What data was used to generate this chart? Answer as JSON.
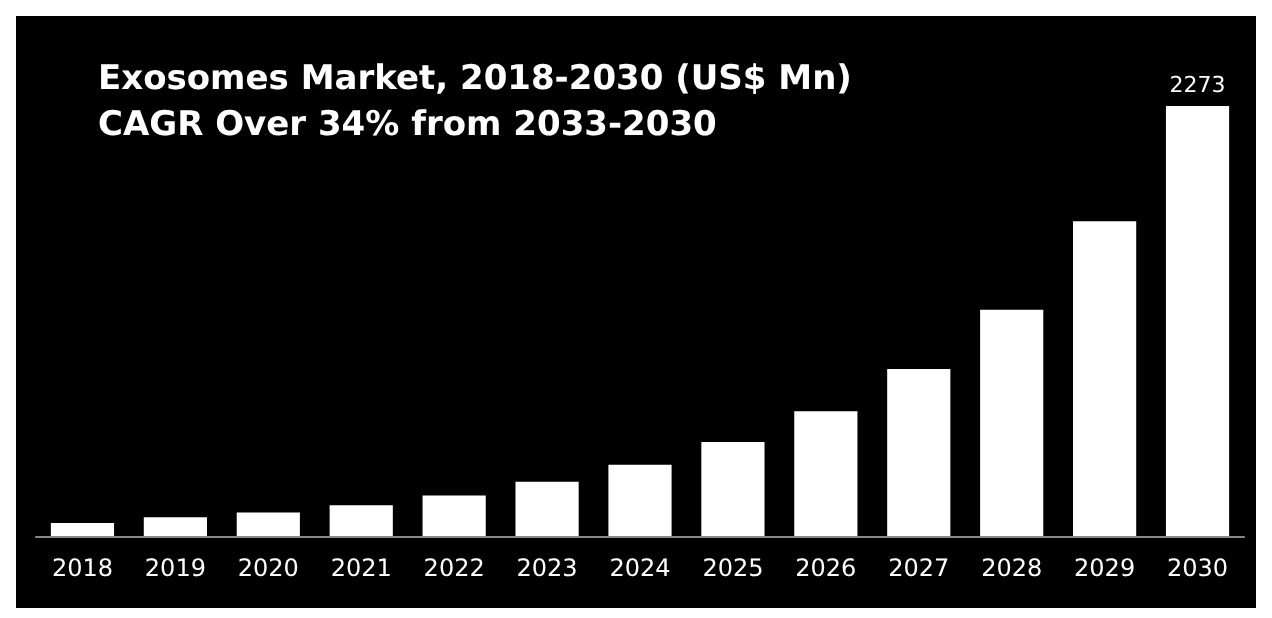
{
  "chart_data": {
    "type": "bar",
    "title": "Exosomes Market, 2018-2030 (US$ Mn)",
    "subtitle": "CAGR Over 34% from 2033-2030",
    "categories": [
      "2018",
      "2019",
      "2020",
      "2021",
      "2022",
      "2023",
      "2024",
      "2025",
      "2026",
      "2027",
      "2028",
      "2029",
      "2030"
    ],
    "values": [
      69,
      99,
      124,
      163,
      214,
      287,
      377,
      497,
      660,
      883,
      1196,
      1664,
      2273
    ],
    "value_labels": [
      null,
      null,
      null,
      null,
      null,
      null,
      null,
      null,
      null,
      null,
      null,
      null,
      "2273"
    ],
    "color": "#ffffff"
  }
}
